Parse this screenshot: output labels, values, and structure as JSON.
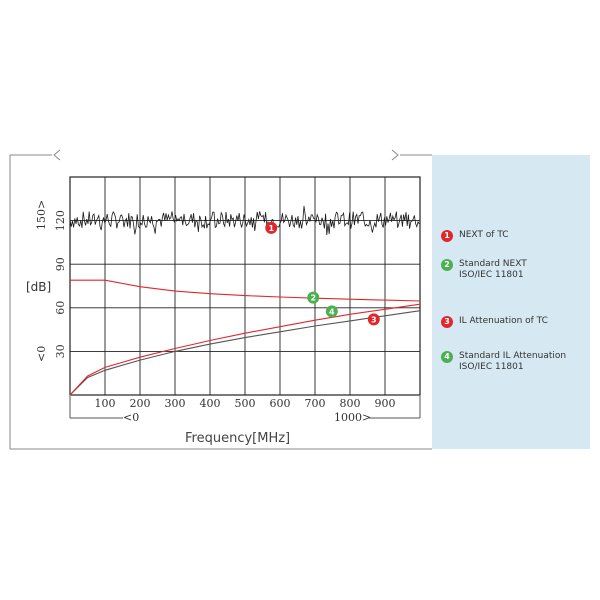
{
  "chart_data": {
    "type": "line",
    "xlabel": "Frequency[MHz]",
    "ylabel": "[dB]",
    "xlim": [
      0,
      1000
    ],
    "ylim": [
      0,
      150
    ],
    "x_ticks": [
      100,
      200,
      300,
      400,
      500,
      600,
      700,
      800,
      900
    ],
    "y_ticks": [
      30,
      60,
      90,
      120
    ],
    "y_top_label": "150>",
    "y_bottom_label": "<0",
    "x_left_label": "<0",
    "x_right_label": "1000>",
    "grid": true,
    "legend_position": "right",
    "series": [
      {
        "name": "NEXT of TC",
        "badge": "1",
        "color": "#1a1a1a",
        "x": [
          0,
          1000
        ],
        "y": [
          118,
          118
        ],
        "style": "noisy",
        "noise_range": [
          106,
          130
        ]
      },
      {
        "name": "Standard NEXT",
        "name_line2": "ISO/IEC 11801",
        "badge": "2",
        "color": "#e0282c",
        "x": [
          0,
          100,
          200,
          300,
          400,
          500,
          600,
          700,
          800,
          900,
          1000
        ],
        "y": [
          79,
          79,
          74.5,
          71.5,
          69.7,
          68.4,
          67.4,
          66.6,
          65.9,
          65.3,
          64.7
        ]
      },
      {
        "name": "IL Attenuation of TC",
        "badge": "3",
        "color": "#555555",
        "x": [
          0,
          50,
          100,
          200,
          300,
          400,
          500,
          600,
          700,
          800,
          900,
          1000
        ],
        "y": [
          0,
          12,
          17,
          24,
          30,
          35,
          39.5,
          43.5,
          47.5,
          51,
          54.5,
          58
        ]
      },
      {
        "name": "Standard IL Attenuation",
        "name_line2": "ISO/IEC 11801",
        "badge": "4",
        "color": "#e0282c",
        "x": [
          0,
          50,
          100,
          200,
          300,
          400,
          500,
          600,
          700,
          800,
          900,
          1000
        ],
        "y": [
          0,
          13,
          19,
          26,
          32,
          37.5,
          42.5,
          47,
          51.5,
          55.5,
          59,
          62.5
        ]
      }
    ],
    "badges": [
      {
        "id": "1",
        "x": 575,
        "y": 115,
        "color": "#e0282c"
      },
      {
        "id": "2",
        "x": 695,
        "y": 67,
        "color": "#4caf50"
      },
      {
        "id": "3",
        "x": 868,
        "y": 52,
        "color": "#e0282c"
      },
      {
        "id": "4",
        "x": 748,
        "y": 57.5,
        "color": "#4caf50"
      }
    ],
    "legend_badge_colors": [
      "#e0282c",
      "#4caf50",
      "#e0282c",
      "#4caf50"
    ]
  }
}
